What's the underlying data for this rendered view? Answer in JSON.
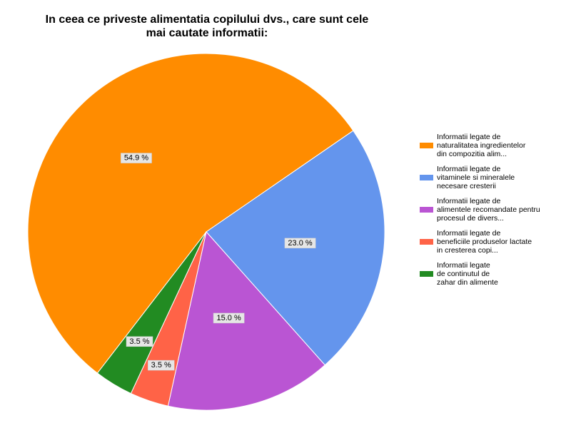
{
  "chart_data": {
    "type": "pie",
    "title_lines": [
      "In ceea ce priveste alimentatia copilului dvs., care sunt cele",
      "mai cautate informatii:"
    ],
    "slices": [
      {
        "label_lines": [
          "Informatii legate de",
          "naturalitatea ingredientelor",
          "din compozitia alim..."
        ],
        "value": 54.9,
        "display": "54.9 %",
        "color": "#ff8c00"
      },
      {
        "label_lines": [
          "Informatii legate de",
          "vitaminele si mineralele",
          "necesare cresterii"
        ],
        "value": 23.0,
        "display": "23.0 %",
        "color": "#6495ed"
      },
      {
        "label_lines": [
          "Informatii legate de",
          "alimentele recomandate pentru",
          "procesul de divers..."
        ],
        "value": 15.0,
        "display": "15.0 %",
        "color": "#ba55d3"
      },
      {
        "label_lines": [
          "Informatii legate de",
          "beneficiile produselor lactate",
          "in cresterea copi..."
        ],
        "value": 3.5,
        "display": "3.5 %",
        "color": "#ff6347"
      },
      {
        "label_lines": [
          "Informatii legate",
          "de continutul de",
          "zahar din alimente"
        ],
        "value": 3.5,
        "display": "3.5 %",
        "color": "#228b22"
      }
    ],
    "legend_position": "right"
  }
}
